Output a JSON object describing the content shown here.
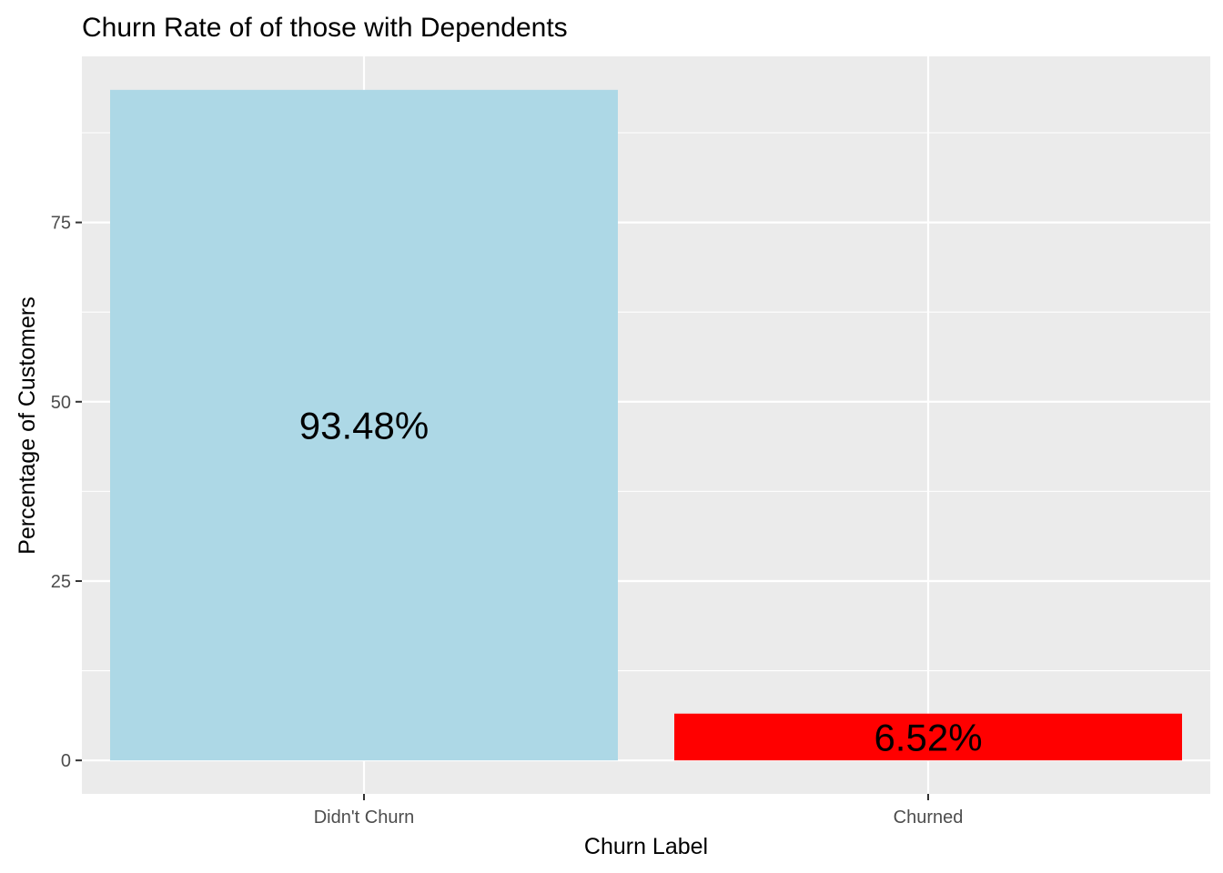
{
  "chart_data": {
    "type": "bar",
    "title": "Churn Rate of of those with Dependents",
    "xlabel": "Churn Label",
    "ylabel": "Percentage of Customers",
    "categories": [
      "Didn't Churn",
      "Churned"
    ],
    "values": [
      93.48,
      6.52
    ],
    "data_labels": [
      "93.48%",
      "6.52%"
    ],
    "bar_colors": [
      "#add8e6",
      "#ff0000"
    ],
    "yticks": [
      0,
      25,
      50,
      75
    ],
    "ytick_labels": [
      "0",
      "25",
      "50",
      "75"
    ],
    "ylim": [
      -4.67,
      98.15
    ],
    "grid": true,
    "panel_background": "#ebebeb",
    "gridline_color": "#ffffff",
    "legend": "none"
  }
}
